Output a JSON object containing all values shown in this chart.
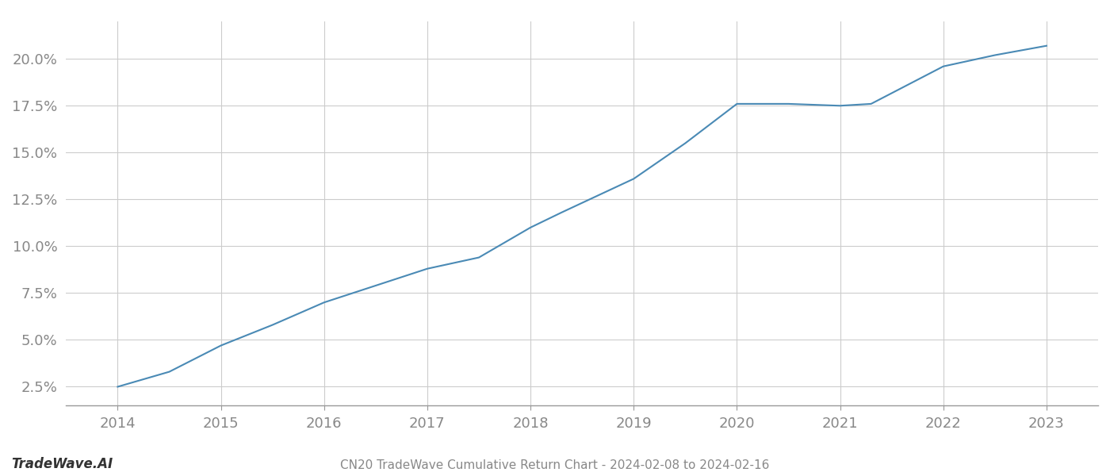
{
  "title": "CN20 TradeWave Cumulative Return Chart - 2024-02-08 to 2024-02-16",
  "watermark": "TradeWave.AI",
  "line_color": "#4a8ab5",
  "background_color": "#ffffff",
  "x_values": [
    2014,
    2014.5,
    2015,
    2015.5,
    2016,
    2016.5,
    2017,
    2017.5,
    2018,
    2018.3,
    2019,
    2019.5,
    2020,
    2020.5,
    2021,
    2021.3,
    2022,
    2022.5,
    2023
  ],
  "y_values": [
    0.025,
    0.033,
    0.047,
    0.058,
    0.07,
    0.079,
    0.088,
    0.094,
    0.11,
    0.118,
    0.136,
    0.155,
    0.176,
    0.176,
    0.175,
    0.176,
    0.196,
    0.202,
    0.207
  ],
  "xlim": [
    2013.5,
    2023.5
  ],
  "ylim": [
    0.015,
    0.22
  ],
  "yticks": [
    0.025,
    0.05,
    0.075,
    0.1,
    0.125,
    0.15,
    0.175,
    0.2
  ],
  "ytick_labels": [
    "2.5%",
    "5.0%",
    "7.5%",
    "10.0%",
    "12.5%",
    "15.0%",
    "17.5%",
    "20.0%"
  ],
  "xticks": [
    2014,
    2015,
    2016,
    2017,
    2018,
    2019,
    2020,
    2021,
    2022,
    2023
  ],
  "grid_color": "#cccccc",
  "line_width": 1.5,
  "tick_label_color": "#888888",
  "title_color": "#888888",
  "watermark_color": "#333333",
  "title_fontsize": 11,
  "tick_fontsize": 13,
  "watermark_fontsize": 12
}
